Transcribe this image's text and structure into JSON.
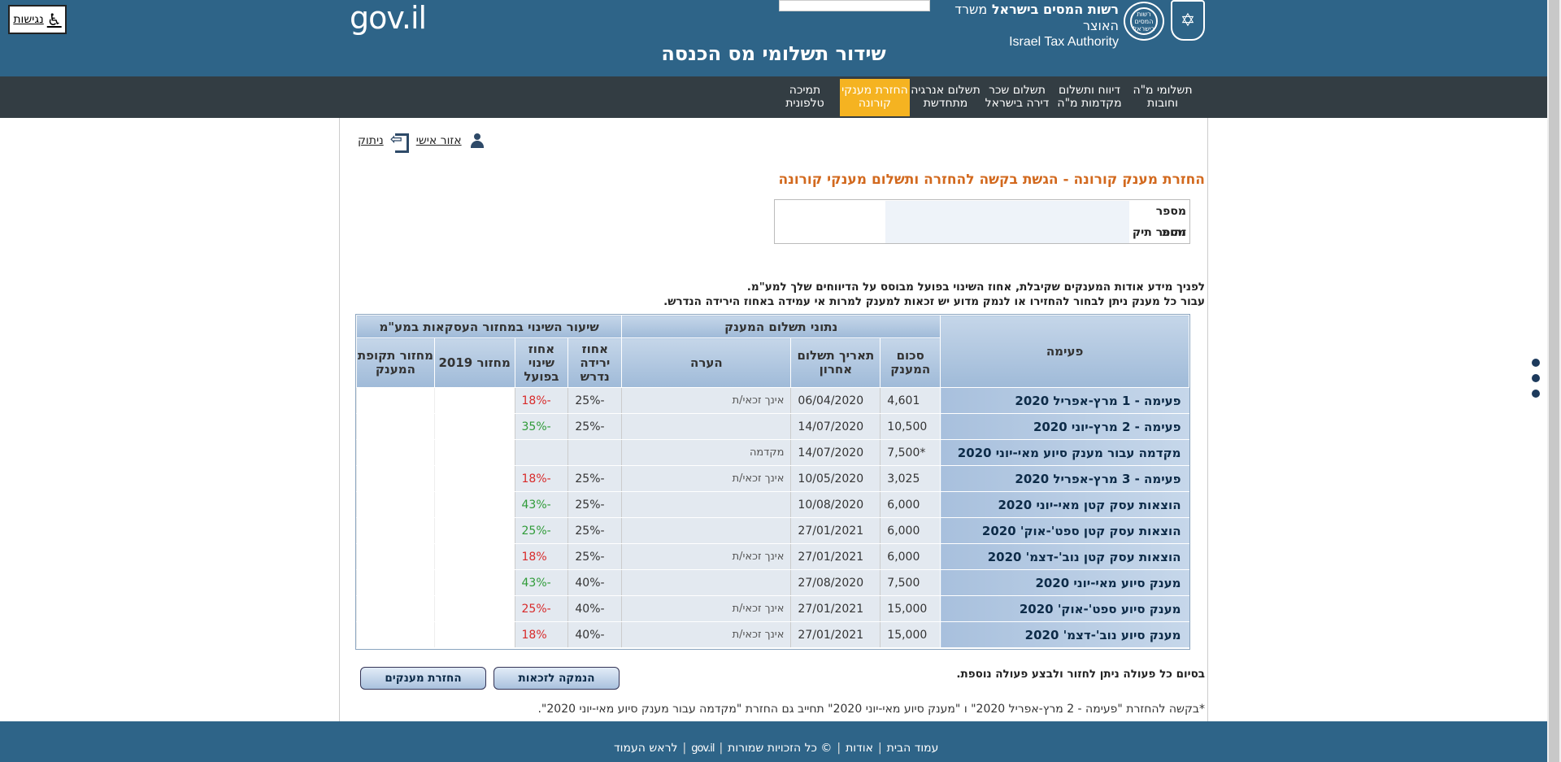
{
  "header": {
    "accessibility_label": "נגישות",
    "gov_logo": "gov.il",
    "authority_heb": "רשות המסים בישראל",
    "authority_heb_sub": "משרד האוצר",
    "authority_eng": "Israel Tax Authority",
    "logo_text": "רשות המסים בישראל",
    "page_title": "שידור תשלומי מס הכנסה"
  },
  "nav": {
    "items": [
      {
        "label": "תשלומי מ\"ה וחובות"
      },
      {
        "label": "דיווח ותשלום מקדמות מ\"ה"
      },
      {
        "label": "תשלום שכר דירה בישראל"
      },
      {
        "label": "תשלום אנרגיה מתחדשת"
      },
      {
        "label": "החזרת מענקי קורונה"
      },
      {
        "label": "תמיכה טלפונית"
      }
    ]
  },
  "personal": {
    "area_label": "אזור אישי",
    "logout_label": "ניתוק"
  },
  "section_title": "החזרת מענק קורונה - הגשת בקשה להחזרה ותשלום מענקי קורונה",
  "id_box": {
    "id_label": "מספר זהות",
    "file_label": "מספר תיק"
  },
  "info": {
    "line1": "לפניך מידע אודות המענקים שקיבלת, אחוז השינוי בפועל מבוסס על הדיווחים שלך למע\"מ.",
    "line2": "עבור כל מענק ניתן לבחור להחזירו או לנמק מדוע יש זכאות למענק למרות אי עמידה באחוז הירידה הנדרש."
  },
  "table": {
    "group_headers": {
      "period": "פעימה",
      "payment": "נתוני תשלום המענק",
      "change": "שיעור השינוי במחזור העסקאות במע\"מ"
    },
    "sub_headers": {
      "amount": "סכום המענק",
      "last_date": "תאריך תשלום אחרון",
      "note": "הערה",
      "required": "אחוז ירידה נדרש",
      "actual": "אחוז שינוי בפועל",
      "turnover2019": "מחזור 2019",
      "grant_turnover": "מחזור תקופת המענק"
    },
    "rows": [
      {
        "period": "פעימה - 1 מרץ-אפריל 2020",
        "amount": "4,601",
        "date": "06/04/2020",
        "note": "אינך זכאי/ת",
        "required": "-25%",
        "actual": "-18%",
        "actual_color": "#d82a2a"
      },
      {
        "period": "פעימה - 2 מרץ-יוני 2020",
        "amount": "10,500",
        "date": "14/07/2020",
        "note": "",
        "required": "-25%",
        "actual": "-35%",
        "actual_color": "#2f9b38"
      },
      {
        "period": "מקדמה עבור מענק סיוע מאי-יוני 2020",
        "amount": "*7,500",
        "date": "14/07/2020",
        "note": "מקדמה",
        "required": "",
        "actual": "",
        "actual_color": "#333333"
      },
      {
        "period": "פעימה - 3 מרץ-אפריל 2020",
        "amount": "3,025",
        "date": "10/05/2020",
        "note": "אינך זכאי/ת",
        "required": "-25%",
        "actual": "-18%",
        "actual_color": "#d82a2a"
      },
      {
        "period": "הוצאות עסק קטן מאי-יוני 2020",
        "amount": "6,000",
        "date": "10/08/2020",
        "note": "",
        "required": "-25%",
        "actual": "-43%",
        "actual_color": "#2f9b38"
      },
      {
        "period": "הוצאות עסק קטן ספט'-אוק' 2020",
        "amount": "6,000",
        "date": "27/01/2021",
        "note": "",
        "required": "-25%",
        "actual": "-25%",
        "actual_color": "#2f9b38"
      },
      {
        "period": "הוצאות עסק קטן נוב'-דצמ' 2020",
        "amount": "6,000",
        "date": "27/01/2021",
        "note": "אינך זכאי/ת",
        "required": "-25%",
        "actual": "18%",
        "actual_color": "#d82a2a"
      },
      {
        "period": "מענק סיוע מאי-יוני 2020",
        "amount": "7,500",
        "date": "27/08/2020",
        "note": "",
        "required": "-40%",
        "actual": "-43%",
        "actual_color": "#2f9b38"
      },
      {
        "period": "מענק סיוע ספט'-אוק' 2020",
        "amount": "15,000",
        "date": "27/01/2021",
        "note": "אינך זכאי/ת",
        "required": "-40%",
        "actual": "-25%",
        "actual_color": "#d82a2a"
      },
      {
        "period": "מענק סיוע נוב'-דצמ' 2020",
        "amount": "15,000",
        "date": "27/01/2021",
        "note": "אינך זכאי/ת",
        "required": "-40%",
        "actual": "18%",
        "actual_color": "#d82a2a"
      }
    ]
  },
  "actions": {
    "after_text": "בסיום כל פעולה ניתן לחזור ולבצע פעולה נוספת.",
    "justify_button": "הנמקה לזכאות",
    "return_button": "החזרת מענקים"
  },
  "footnote": "*בקשה להחזרת \"פעימה - 2 מרץ-אפריל 2020\" ו \"מענק סיוע מאי-יוני 2020\" תחייב גם החזרת \"מקדמה עבור מענק סיוע מאי-יוני 2020\".",
  "footer": {
    "home": "עמוד הבית",
    "about": "אודות",
    "rights": "© כל הזכויות שמורות",
    "gov": "gov.il",
    "top": "לראש העמוד"
  }
}
